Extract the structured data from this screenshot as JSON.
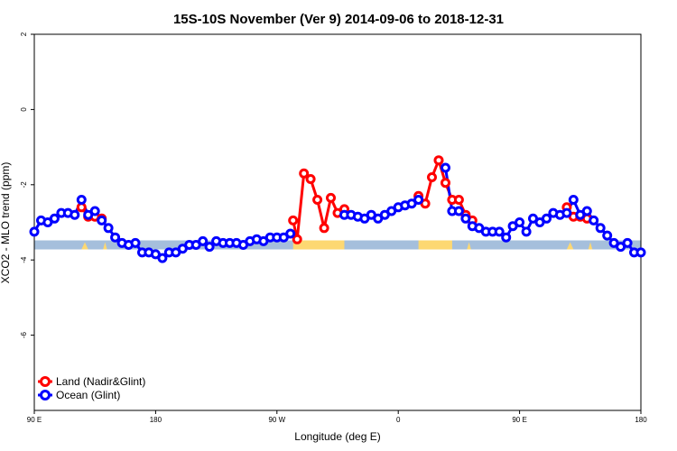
{
  "chart_data": {
    "type": "line",
    "title": "15S-10S November (Ver 9)   2014-09-06 to 2018-12-31",
    "xlabel": "Longitude (deg E)",
    "ylabel": "XCO2 - MLO trend (ppm)",
    "xlim": [
      90,
      540
    ],
    "ylim": [
      -8,
      2
    ],
    "x_ticks": [
      {
        "value": 90,
        "label": "90 E"
      },
      {
        "value": 180,
        "label": "180"
      },
      {
        "value": 270,
        "label": "90 W"
      },
      {
        "value": 360,
        "label": "0"
      },
      {
        "value": 450,
        "label": "90 E"
      },
      {
        "value": 540,
        "label": "180"
      }
    ],
    "y_ticks": [
      {
        "value": 2,
        "label": "2"
      },
      {
        "value": 0,
        "label": "0"
      },
      {
        "value": -2,
        "label": "-2"
      },
      {
        "value": -4,
        "label": "-4"
      },
      {
        "value": -6,
        "label": "-6"
      }
    ],
    "grid": false,
    "legend_position": "bottom-left",
    "series": [
      {
        "name": "Land (Nadir&Glint)",
        "color": "#ff0000",
        "segments": [
          [
            [
              125,
              -2.6
            ],
            [
              130,
              -2.85
            ],
            [
              135,
              -2.85
            ],
            [
              140,
              -2.9
            ]
          ],
          [
            [
              282,
              -2.95
            ],
            [
              285,
              -3.45
            ],
            [
              290,
              -1.7
            ],
            [
              295,
              -1.85
            ],
            [
              300,
              -2.4
            ],
            [
              305,
              -3.15
            ],
            [
              310,
              -2.35
            ],
            [
              315,
              -2.75
            ],
            [
              320,
              -2.65
            ]
          ],
          [
            [
              375,
              -2.3
            ],
            [
              380,
              -2.5
            ],
            [
              385,
              -1.8
            ],
            [
              390,
              -1.35
            ],
            [
              395,
              -1.95
            ],
            [
              400,
              -2.4
            ],
            [
              405,
              -2.4
            ],
            [
              410,
              -2.8
            ],
            [
              415,
              -2.95
            ]
          ],
          [
            [
              485,
              -2.6
            ],
            [
              490,
              -2.85
            ],
            [
              495,
              -2.85
            ],
            [
              500,
              -2.9
            ]
          ]
        ]
      },
      {
        "name": "Ocean (Glint)",
        "color": "#0000ff",
        "points": [
          [
            90,
            -3.25
          ],
          [
            95,
            -2.95
          ],
          [
            100,
            -3.0
          ],
          [
            105,
            -2.9
          ],
          [
            110,
            -2.75
          ],
          [
            115,
            -2.75
          ],
          [
            120,
            -2.8
          ],
          [
            125,
            -2.4
          ],
          [
            130,
            -2.8
          ],
          [
            135,
            -2.7
          ],
          [
            140,
            -2.95
          ],
          [
            145,
            -3.15
          ],
          [
            150,
            -3.4
          ],
          [
            155,
            -3.55
          ],
          [
            160,
            -3.6
          ],
          [
            165,
            -3.55
          ],
          [
            170,
            -3.8
          ],
          [
            175,
            -3.8
          ],
          [
            180,
            -3.85
          ],
          [
            185,
            -3.95
          ],
          [
            190,
            -3.8
          ],
          [
            195,
            -3.8
          ],
          [
            200,
            -3.7
          ],
          [
            205,
            -3.6
          ],
          [
            210,
            -3.6
          ],
          [
            215,
            -3.5
          ],
          [
            220,
            -3.65
          ],
          [
            225,
            -3.5
          ],
          [
            230,
            -3.55
          ],
          [
            235,
            -3.55
          ],
          [
            240,
            -3.55
          ],
          [
            245,
            -3.6
          ],
          [
            250,
            -3.5
          ],
          [
            255,
            -3.45
          ],
          [
            260,
            -3.5
          ],
          [
            265,
            -3.4
          ],
          [
            270,
            -3.4
          ],
          [
            275,
            -3.4
          ],
          [
            280,
            -3.3
          ],
          [
            320,
            -2.8
          ],
          [
            325,
            -2.8
          ],
          [
            330,
            -2.85
          ],
          [
            335,
            -2.9
          ],
          [
            340,
            -2.8
          ],
          [
            345,
            -2.9
          ],
          [
            350,
            -2.8
          ],
          [
            355,
            -2.7
          ],
          [
            360,
            -2.6
          ],
          [
            365,
            -2.55
          ],
          [
            370,
            -2.5
          ],
          [
            375,
            -2.4
          ],
          [
            395,
            -1.55
          ],
          [
            400,
            -2.7
          ],
          [
            405,
            -2.7
          ],
          [
            410,
            -2.9
          ],
          [
            415,
            -3.1
          ],
          [
            420,
            -3.15
          ],
          [
            425,
            -3.25
          ],
          [
            430,
            -3.25
          ],
          [
            435,
            -3.25
          ],
          [
            440,
            -3.4
          ],
          [
            445,
            -3.1
          ],
          [
            450,
            -3.0
          ],
          [
            455,
            -3.25
          ],
          [
            460,
            -2.9
          ],
          [
            465,
            -3.0
          ],
          [
            470,
            -2.9
          ],
          [
            475,
            -2.75
          ],
          [
            480,
            -2.8
          ],
          [
            485,
            -2.75
          ],
          [
            490,
            -2.4
          ],
          [
            495,
            -2.8
          ],
          [
            500,
            -2.7
          ],
          [
            505,
            -2.95
          ],
          [
            510,
            -3.15
          ],
          [
            515,
            -3.35
          ],
          [
            520,
            -3.55
          ],
          [
            525,
            -3.65
          ],
          [
            530,
            -3.55
          ],
          [
            535,
            -3.8
          ],
          [
            540,
            -3.8
          ]
        ]
      }
    ],
    "background_band": {
      "y_range": [
        -3.72,
        -3.48
      ],
      "ocean_color": "#a5bfdc",
      "land_color": "#fdd872",
      "land_segments": [
        [
          282,
          320
        ],
        [
          375,
          400
        ]
      ],
      "land_bumps": [
        [
          125,
          130
        ],
        [
          141,
          144
        ],
        [
          485,
          490
        ],
        [
          501,
          504
        ],
        [
          411,
          414
        ]
      ]
    }
  }
}
